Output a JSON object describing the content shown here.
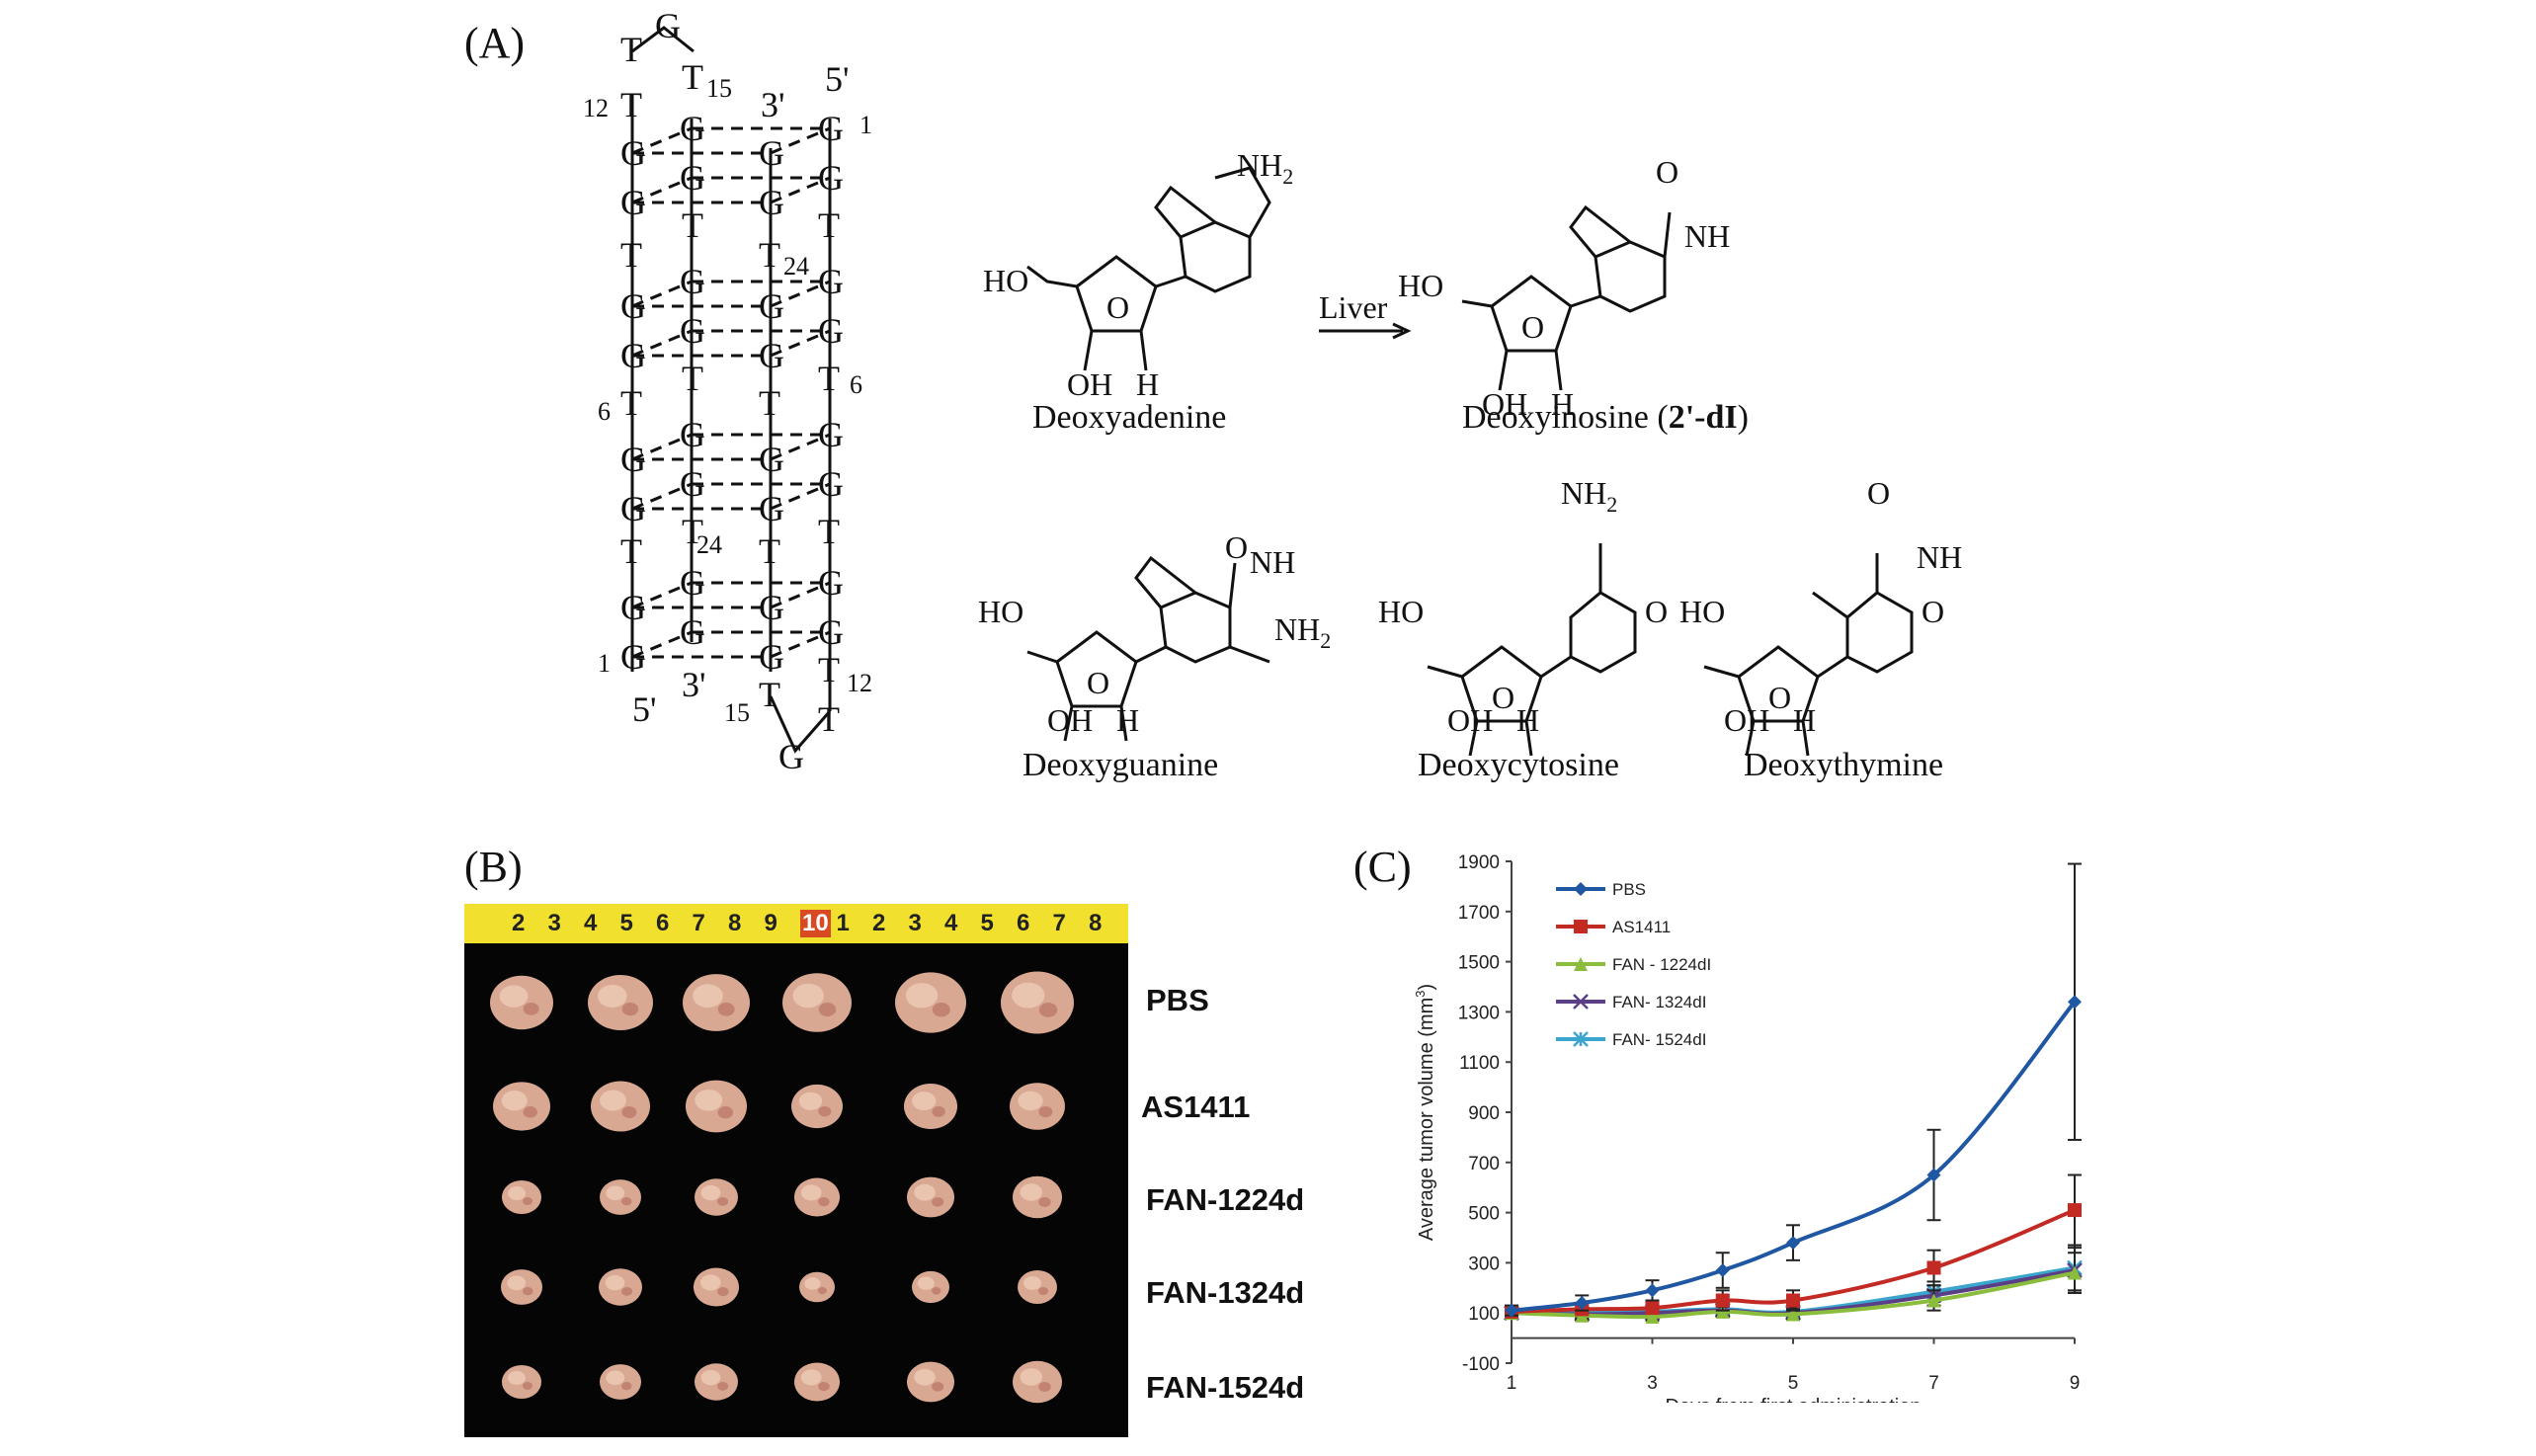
{
  "panels": {
    "a_label": "(A)",
    "b_label": "(B)",
    "c_label": "(C)"
  },
  "quadruplex": {
    "T_top": "T",
    "G_loop_top": "G",
    "n15_top": "15",
    "n12_top": "12",
    "n24_a": "24",
    "n6_left": "6",
    "n6_right": "6",
    "n24_b": "24",
    "n1_top": "1",
    "n1_bottom": "1",
    "n15_bottom": "15",
    "n12_bottom": "12",
    "p3_top": "3'",
    "p5_top": "5'",
    "p5_bottom": "5'",
    "p3_bottom": "3'",
    "G_loop_bottom": "G"
  },
  "chemistry": {
    "arrow_label": "Liver",
    "compounds": [
      {
        "name": "Deoxyadenine"
      },
      {
        "name": "Deoxyinosine (2'-dI)",
        "name_main": "Deoxyinosine (",
        "name_bold": "2'-dI",
        "name_end": ")"
      },
      {
        "name": "Deoxyguanine"
      },
      {
        "name": "Deoxycytosine"
      },
      {
        "name": "Deoxythymine"
      }
    ],
    "atoms": {
      "HO": "HO",
      "OH": "OH",
      "H": "H",
      "O": "O",
      "N": "N",
      "NH": "NH",
      "NH2": "NH",
      "sub2": "2"
    }
  },
  "photo": {
    "ruler_numbers": [
      "2",
      "3",
      "4",
      "5",
      "6",
      "7",
      "8",
      "9",
      "10",
      "1",
      "2",
      "3",
      "4",
      "5",
      "6",
      "7",
      "8"
    ],
    "row_labels": [
      "PBS",
      "AS1411",
      "FAN-1224d",
      "FAN-1324d",
      "FAN-1524d"
    ],
    "tumor_counts": [
      6,
      6,
      6,
      6,
      6
    ],
    "colors": {
      "background": "#050505",
      "ruler": "#f2e02e",
      "tumor": "#d8a893"
    }
  },
  "chart_data": {
    "type": "line",
    "xlabel": "Days from first administration",
    "ylabel": "Average tumor volume (mm",
    "ylabel_sup": "3",
    "ylabel_end": ")",
    "xlim": [
      1,
      9
    ],
    "ylim": [
      -100,
      1900
    ],
    "xticks": [
      "1",
      "3",
      "5",
      "7",
      "9"
    ],
    "yticks": [
      "-100",
      "100",
      "300",
      "500",
      "700",
      "900",
      "1100",
      "1300",
      "1500",
      "1700",
      "1900"
    ],
    "legend_position": "top-left",
    "grid": false,
    "x": [
      1,
      2,
      3,
      4,
      5,
      7,
      9
    ],
    "series": [
      {
        "name": "PBS",
        "color": "#1f57a3",
        "marker": "diamond",
        "values": [
          110,
          140,
          190,
          270,
          380,
          650,
          1340
        ],
        "errors": [
          20,
          30,
          40,
          70,
          70,
          180,
          550
        ]
      },
      {
        "name": "AS1411",
        "color": "#c22a23",
        "marker": "square",
        "values": [
          105,
          115,
          120,
          150,
          150,
          280,
          510
        ],
        "errors": [
          15,
          20,
          20,
          40,
          40,
          70,
          140
        ]
      },
      {
        "name": "FAN - 1224dI",
        "color": "#8bbd3c",
        "marker": "triangle",
        "values": [
          100,
          90,
          85,
          105,
          95,
          150,
          260
        ],
        "errors": [
          10,
          15,
          15,
          20,
          20,
          40,
          80
        ]
      },
      {
        "name": "FAN- 1324dI",
        "color": "#5a3f86",
        "marker": "x",
        "values": [
          100,
          95,
          100,
          110,
          100,
          170,
          270
        ],
        "errors": [
          10,
          15,
          15,
          20,
          20,
          40,
          90
        ]
      },
      {
        "name": "FAN- 1524dI",
        "color": "#3aa5cd",
        "marker": "asterisk",
        "values": [
          100,
          100,
          105,
          115,
          105,
          185,
          280
        ],
        "errors": [
          10,
          15,
          15,
          20,
          20,
          40,
          90
        ]
      }
    ]
  }
}
